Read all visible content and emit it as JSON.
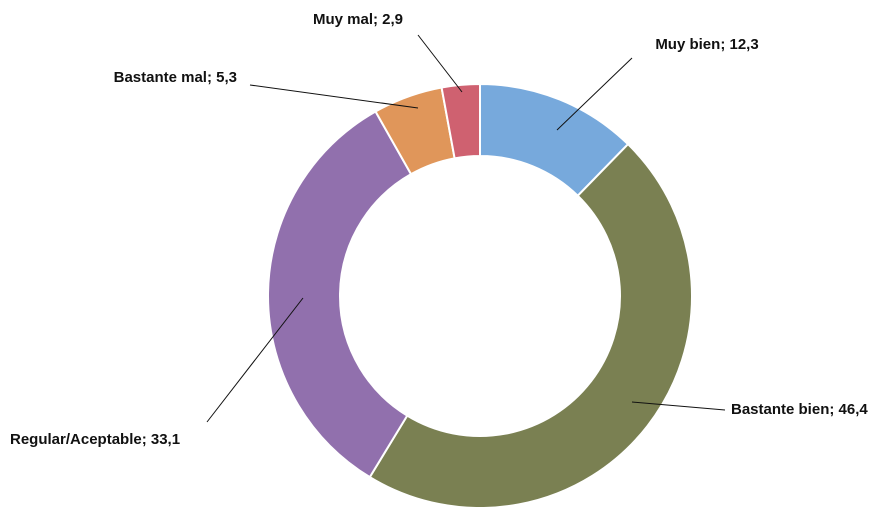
{
  "chart_data": {
    "type": "donut",
    "values": [
      12.3,
      46.4,
      33.1,
      5.3,
      2.9
    ],
    "value_labels": [
      "Muy bien; 12,3",
      "Bastante bien; 46,4",
      "Regular/Aceptable; 33,1",
      "Bastante mal; 5,3",
      "Muy mal; 2,9"
    ],
    "colors": [
      "#77a9dc",
      "#7a8052",
      "#9170ad",
      "#e0965a",
      "#cf6170"
    ]
  }
}
